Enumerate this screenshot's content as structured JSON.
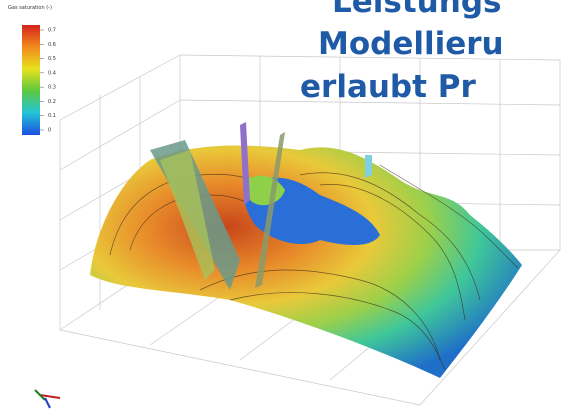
{
  "colorbar": {
    "title": "Gas saturation (-)",
    "ticks": [
      0.7,
      0.6,
      0.5,
      0.4,
      0.3,
      0.2,
      0.1,
      0
    ]
  },
  "headline": {
    "lines": [
      "Leistungs",
      "Modellieru",
      "erlaubt Pr"
    ]
  }
}
